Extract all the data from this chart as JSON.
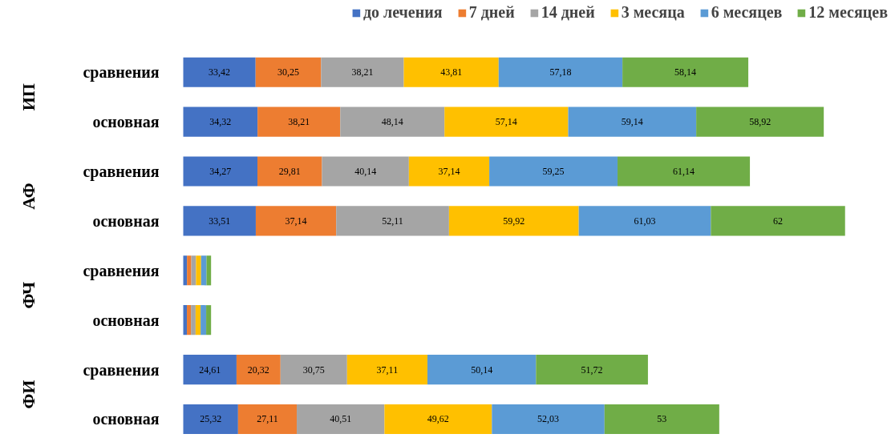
{
  "chart_data": {
    "type": "bar",
    "orientation": "horizontal",
    "stacked": true,
    "legend": "top",
    "grid": false,
    "categories": [
      "сравнения",
      "основная",
      "сравнения",
      "основная",
      "сравнения",
      "основная",
      "сравнения",
      "основная"
    ],
    "annotations": [
      "ИП",
      "АФ",
      "ФЧ",
      "ФИ"
    ],
    "series": [
      {
        "name": "до лечения",
        "color": "#4472c4",
        "values": [
          33.42,
          34.32,
          34.27,
          33.51,
          1.72,
          1.68,
          24.61,
          25.32
        ],
        "value_labels": [
          "33,42",
          "34,32",
          "34,27",
          "33,51",
          null,
          null,
          "24,61",
          "25,32"
        ]
      },
      {
        "name": "7 дней",
        "color": "#ed7d31",
        "values": [
          30.25,
          38.21,
          29.81,
          37.14,
          2.01,
          1.89,
          20.32,
          27.11
        ],
        "value_labels": [
          "30,25",
          "38,21",
          "29,81",
          "37,14",
          null,
          null,
          "20,32",
          "27,11"
        ]
      },
      {
        "name": "14 дней",
        "color": "#a5a5a5",
        "values": [
          38.21,
          48.14,
          40.14,
          52.11,
          2.16,
          2.13,
          30.75,
          40.51
        ],
        "value_labels": [
          "38,21",
          "48,14",
          "40,14",
          "52,11",
          null,
          null,
          "30,75",
          "40,51"
        ]
      },
      {
        "name": "3 месяца",
        "color": "#ffc000",
        "values": [
          43.81,
          57.14,
          37.14,
          59.92,
          2.35,
          2.31,
          37.11,
          49.62
        ],
        "value_labels": [
          "43,81",
          "57,14",
          "37,14",
          "59,92",
          null,
          null,
          "37,11",
          "49,62"
        ]
      },
      {
        "name": "6 месяцев",
        "color": "#5b9bd5",
        "values": [
          57.18,
          59.14,
          59.25,
          61.03,
          2.5,
          2.57,
          50.14,
          52.03
        ],
        "value_labels": [
          "57,18",
          "59,14",
          "59,25",
          "61,03",
          null,
          null,
          "50,14",
          "52,03"
        ]
      },
      {
        "name": "12 месяцев",
        "color": "#70ad47",
        "values": [
          58.14,
          58.92,
          61.14,
          62,
          2.11,
          2.27,
          51.72,
          53
        ],
        "value_labels": [
          "58,14",
          "58,92",
          "61,14",
          "62",
          null,
          null,
          "51,72",
          "53"
        ]
      }
    ]
  }
}
